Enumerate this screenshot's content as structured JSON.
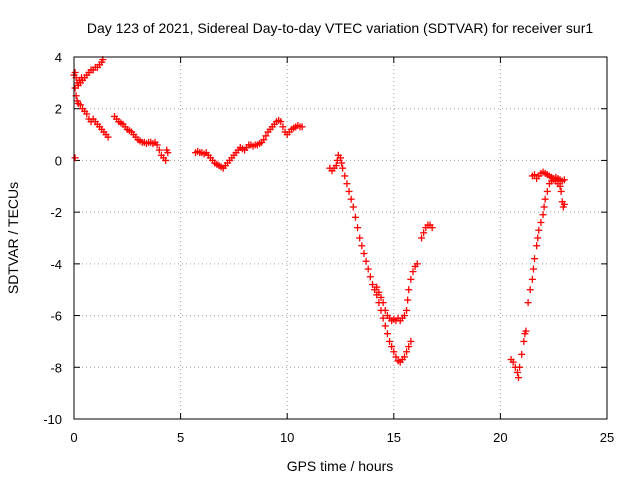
{
  "chart_data": {
    "type": "scatter",
    "title": "Day 123 of 2021, Sidereal Day-to-day VTEC variation (SDTVAR) for receiver sur1",
    "xlabel": "GPS time / hours",
    "ylabel": "SDTVAR / TECUs",
    "xlim": [
      0,
      25
    ],
    "ylim": [
      -10,
      4
    ],
    "xticks": [
      0,
      5,
      10,
      15,
      20,
      25
    ],
    "yticks": [
      -10,
      -8,
      -6,
      -4,
      -2,
      0,
      2,
      4
    ],
    "xtick_labels": [
      "0",
      "5",
      "10",
      "15",
      "20",
      "25"
    ],
    "ytick_labels": [
      "-10",
      "-8",
      "-6",
      "-4",
      "-2",
      "0",
      "2",
      "4"
    ],
    "grid": true,
    "marker": "plus",
    "color": "#ff0000",
    "series": [
      {
        "points": [
          [
            0.0,
            3.3
          ],
          [
            0.05,
            3.4
          ],
          [
            0.1,
            3.2
          ],
          [
            0.15,
            3.0
          ],
          [
            0.2,
            2.9
          ],
          [
            0.25,
            3.1
          ],
          [
            0.3,
            3.0
          ],
          [
            0.35,
            3.2
          ],
          [
            0.4,
            3.1
          ],
          [
            0.5,
            3.2
          ],
          [
            0.6,
            3.3
          ],
          [
            0.7,
            3.4
          ],
          [
            0.8,
            3.5
          ],
          [
            0.9,
            3.5
          ],
          [
            1.0,
            3.6
          ],
          [
            1.1,
            3.6
          ],
          [
            1.2,
            3.7
          ],
          [
            1.3,
            3.8
          ],
          [
            1.35,
            3.9
          ],
          [
            0.05,
            2.8
          ],
          [
            0.1,
            2.5
          ],
          [
            0.15,
            2.3
          ],
          [
            0.2,
            2.2
          ],
          [
            0.3,
            2.15
          ],
          [
            0.4,
            2.0
          ],
          [
            0.5,
            1.9
          ],
          [
            0.6,
            1.8
          ],
          [
            0.7,
            1.6
          ],
          [
            0.8,
            1.5
          ],
          [
            0.9,
            1.6
          ],
          [
            1.0,
            1.5
          ],
          [
            1.1,
            1.4
          ],
          [
            1.2,
            1.3
          ],
          [
            1.3,
            1.2
          ],
          [
            1.4,
            1.1
          ],
          [
            1.5,
            1.0
          ],
          [
            1.6,
            0.9
          ],
          [
            0.05,
            0.1
          ],
          [
            1.9,
            1.7
          ],
          [
            2.0,
            1.6
          ],
          [
            2.1,
            1.5
          ],
          [
            2.2,
            1.45
          ],
          [
            2.3,
            1.4
          ],
          [
            2.4,
            1.3
          ],
          [
            2.5,
            1.2
          ],
          [
            2.6,
            1.15
          ],
          [
            2.7,
            1.1
          ],
          [
            2.8,
            1.0
          ],
          [
            2.9,
            0.9
          ],
          [
            3.0,
            0.8
          ],
          [
            3.1,
            0.75
          ],
          [
            3.2,
            0.7
          ],
          [
            3.3,
            0.7
          ],
          [
            3.4,
            0.65
          ],
          [
            3.5,
            0.7
          ],
          [
            3.6,
            0.7
          ],
          [
            3.7,
            0.65
          ],
          [
            3.8,
            0.7
          ],
          [
            3.9,
            0.6
          ],
          [
            4.0,
            0.4
          ],
          [
            4.1,
            0.2
          ],
          [
            4.2,
            0.1
          ],
          [
            4.3,
            0.0
          ],
          [
            4.35,
            0.4
          ],
          [
            4.4,
            0.3
          ],
          [
            5.7,
            0.3
          ],
          [
            5.8,
            0.35
          ],
          [
            5.9,
            0.3
          ],
          [
            6.0,
            0.3
          ],
          [
            6.1,
            0.25
          ],
          [
            6.2,
            0.3
          ],
          [
            6.3,
            0.2
          ],
          [
            6.4,
            0.1
          ],
          [
            6.5,
            0.0
          ],
          [
            6.6,
            -0.1
          ],
          [
            6.7,
            -0.15
          ],
          [
            6.8,
            -0.2
          ],
          [
            6.9,
            -0.25
          ],
          [
            7.0,
            -0.3
          ],
          [
            7.1,
            -0.2
          ],
          [
            7.2,
            -0.1
          ],
          [
            7.3,
            0.0
          ],
          [
            7.4,
            0.1
          ],
          [
            7.5,
            0.2
          ],
          [
            7.6,
            0.3
          ],
          [
            7.7,
            0.4
          ],
          [
            7.8,
            0.5
          ],
          [
            7.9,
            0.45
          ],
          [
            8.0,
            0.4
          ],
          [
            8.1,
            0.5
          ],
          [
            8.2,
            0.6
          ],
          [
            8.3,
            0.6
          ],
          [
            8.4,
            0.55
          ],
          [
            8.5,
            0.6
          ],
          [
            8.6,
            0.6
          ],
          [
            8.7,
            0.65
          ],
          [
            8.8,
            0.7
          ],
          [
            8.9,
            0.8
          ],
          [
            9.0,
            0.95
          ],
          [
            9.1,
            1.1
          ],
          [
            9.2,
            1.2
          ],
          [
            9.3,
            1.3
          ],
          [
            9.4,
            1.4
          ],
          [
            9.5,
            1.5
          ],
          [
            9.6,
            1.55
          ],
          [
            9.7,
            1.5
          ],
          [
            9.8,
            1.3
          ],
          [
            9.9,
            1.1
          ],
          [
            10.0,
            1.0
          ],
          [
            10.1,
            1.1
          ],
          [
            10.2,
            1.2
          ],
          [
            10.3,
            1.25
          ],
          [
            10.4,
            1.3
          ],
          [
            10.5,
            1.35
          ],
          [
            10.6,
            1.3
          ],
          [
            10.7,
            1.3
          ],
          [
            12.0,
            -0.3
          ],
          [
            12.1,
            -0.4
          ],
          [
            12.2,
            -0.3
          ],
          [
            12.3,
            -0.2
          ],
          [
            12.35,
            0.0
          ],
          [
            12.4,
            0.2
          ],
          [
            12.5,
            0.1
          ],
          [
            12.55,
            -0.1
          ],
          [
            12.6,
            -0.3
          ],
          [
            12.7,
            -0.6
          ],
          [
            12.8,
            -0.9
          ],
          [
            12.9,
            -1.2
          ],
          [
            13.0,
            -1.5
          ],
          [
            13.1,
            -1.8
          ],
          [
            13.2,
            -2.2
          ],
          [
            13.3,
            -2.6
          ],
          [
            13.4,
            -3.0
          ],
          [
            13.5,
            -3.3
          ],
          [
            13.6,
            -3.6
          ],
          [
            13.7,
            -3.9
          ],
          [
            13.8,
            -4.2
          ],
          [
            13.9,
            -4.5
          ],
          [
            14.0,
            -4.8
          ],
          [
            14.1,
            -5.0
          ],
          [
            14.2,
            -5.2
          ],
          [
            14.3,
            -5.5
          ],
          [
            14.4,
            -5.8
          ],
          [
            14.5,
            -6.1
          ],
          [
            14.6,
            -6.4
          ],
          [
            14.7,
            -6.7
          ],
          [
            14.8,
            -7.0
          ],
          [
            14.9,
            -7.2
          ],
          [
            15.0,
            -7.4
          ],
          [
            15.1,
            -7.6
          ],
          [
            15.2,
            -7.75
          ],
          [
            15.3,
            -7.8
          ],
          [
            15.4,
            -7.7
          ],
          [
            15.5,
            -7.6
          ],
          [
            15.6,
            -7.4
          ],
          [
            15.7,
            -7.2
          ],
          [
            15.8,
            -7.0
          ],
          [
            14.2,
            -4.9
          ],
          [
            14.3,
            -5.1
          ],
          [
            14.4,
            -5.3
          ],
          [
            14.5,
            -5.5
          ],
          [
            14.6,
            -5.8
          ],
          [
            14.7,
            -6.0
          ],
          [
            14.8,
            -6.1
          ],
          [
            14.9,
            -6.2
          ],
          [
            15.0,
            -6.15
          ],
          [
            15.1,
            -6.2
          ],
          [
            15.2,
            -6.1
          ],
          [
            15.3,
            -6.2
          ],
          [
            15.4,
            -6.1
          ],
          [
            15.5,
            -6.0
          ],
          [
            15.6,
            -5.8
          ],
          [
            15.65,
            -5.4
          ],
          [
            15.7,
            -5.0
          ],
          [
            15.8,
            -4.6
          ],
          [
            15.9,
            -4.3
          ],
          [
            16.0,
            -4.1
          ],
          [
            16.1,
            -4.0
          ],
          [
            16.3,
            -3.0
          ],
          [
            16.4,
            -2.8
          ],
          [
            16.5,
            -2.6
          ],
          [
            16.6,
            -2.5
          ],
          [
            16.7,
            -2.5
          ],
          [
            16.8,
            -2.6
          ],
          [
            20.5,
            -7.7
          ],
          [
            20.6,
            -7.8
          ],
          [
            20.7,
            -8.0
          ],
          [
            20.8,
            -8.2
          ],
          [
            20.85,
            -8.4
          ],
          [
            20.9,
            -8.0
          ],
          [
            21.0,
            -7.5
          ],
          [
            21.1,
            -7.0
          ],
          [
            21.15,
            -6.7
          ],
          [
            21.2,
            -6.6
          ],
          [
            21.3,
            -5.5
          ],
          [
            21.4,
            -5.0
          ],
          [
            21.5,
            -4.6
          ],
          [
            21.55,
            -4.2
          ],
          [
            21.6,
            -3.8
          ],
          [
            21.7,
            -3.3
          ],
          [
            21.75,
            -3.0
          ],
          [
            21.8,
            -2.7
          ],
          [
            21.9,
            -2.4
          ],
          [
            22.0,
            -2.1
          ],
          [
            22.05,
            -1.8
          ],
          [
            22.1,
            -1.5
          ],
          [
            22.2,
            -1.2
          ],
          [
            22.3,
            -0.9
          ],
          [
            22.4,
            -0.8
          ],
          [
            22.5,
            -0.75
          ],
          [
            22.6,
            -0.8
          ],
          [
            22.7,
            -0.9
          ],
          [
            22.8,
            -1.0
          ],
          [
            22.85,
            -1.2
          ],
          [
            22.9,
            -1.6
          ],
          [
            22.95,
            -1.8
          ],
          [
            23.0,
            -1.7
          ],
          [
            21.5,
            -0.6
          ],
          [
            21.6,
            -0.55
          ],
          [
            21.7,
            -0.7
          ],
          [
            21.8,
            -0.6
          ],
          [
            21.9,
            -0.5
          ],
          [
            22.0,
            -0.45
          ],
          [
            22.1,
            -0.5
          ],
          [
            22.2,
            -0.55
          ],
          [
            22.3,
            -0.6
          ],
          [
            22.4,
            -0.65
          ],
          [
            22.5,
            -0.7
          ],
          [
            22.6,
            -0.65
          ],
          [
            22.7,
            -0.7
          ],
          [
            22.8,
            -0.75
          ],
          [
            22.9,
            -0.8
          ],
          [
            23.0,
            -0.75
          ]
        ]
      }
    ]
  }
}
